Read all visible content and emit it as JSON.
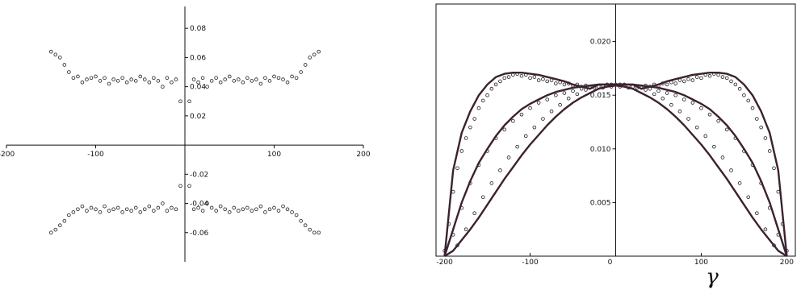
{
  "chart_data": [
    {
      "type": "scatter",
      "title": "",
      "xlabel": "",
      "ylabel": "",
      "xlim": [
        -200,
        200
      ],
      "ylim": [
        -0.08,
        0.095
      ],
      "grid": false,
      "legend": "none",
      "axes_style": "crossing at origin",
      "x_ticks": [
        -200,
        -100,
        100,
        200
      ],
      "x_tick_labels": [
        "-200",
        "-100",
        "100",
        "200"
      ],
      "y_ticks": [
        -0.06,
        -0.04,
        -0.02,
        0.02,
        0.04,
        0.06,
        0.08
      ],
      "y_tick_labels": [
        "-0.06",
        "-0.04",
        "-0.02",
        "0.02",
        "0.04",
        "0.06",
        "0.08"
      ],
      "series": [
        {
          "marker": "open-circle",
          "x": [
            -150,
            -145,
            -140,
            -135,
            -130,
            -125,
            -120,
            -115,
            -110,
            -105,
            -100,
            -95,
            -90,
            -85,
            -80,
            -75,
            -70,
            -65,
            -60,
            -55,
            -50,
            -45,
            -40,
            -35,
            -30,
            -25,
            -20,
            -15,
            -10,
            -5,
            5,
            10,
            15,
            20,
            25,
            30,
            35,
            40,
            45,
            50,
            55,
            60,
            65,
            70,
            75,
            80,
            85,
            90,
            95,
            100,
            105,
            110,
            115,
            120,
            125,
            130,
            135,
            140,
            145,
            150,
            -150,
            -145,
            -140,
            -135,
            -130,
            -125,
            -120,
            -115,
            -110,
            -105,
            -100,
            -95,
            -90,
            -85,
            -80,
            -75,
            -70,
            -65,
            -60,
            -55,
            -50,
            -45,
            -40,
            -35,
            -30,
            -25,
            -20,
            -15,
            -10,
            -5,
            5,
            10,
            15,
            20,
            25,
            30,
            35,
            40,
            45,
            50,
            55,
            60,
            65,
            70,
            75,
            80,
            85,
            90,
            95,
            100,
            105,
            110,
            115,
            120,
            125,
            130,
            135,
            140,
            145,
            150
          ],
          "y": [
            0.064,
            0.062,
            0.06,
            0.055,
            0.05,
            0.046,
            0.047,
            0.043,
            0.045,
            0.046,
            0.047,
            0.044,
            0.046,
            0.042,
            0.045,
            0.044,
            0.046,
            0.043,
            0.045,
            0.044,
            0.047,
            0.045,
            0.043,
            0.046,
            0.044,
            0.04,
            0.046,
            0.043,
            0.045,
            0.03,
            0.03,
            0.045,
            0.043,
            0.046,
            0.04,
            0.044,
            0.046,
            0.043,
            0.045,
            0.047,
            0.044,
            0.045,
            0.043,
            0.046,
            0.044,
            0.045,
            0.042,
            0.046,
            0.044,
            0.047,
            0.046,
            0.045,
            0.043,
            0.047,
            0.046,
            0.05,
            0.055,
            0.06,
            0.062,
            0.064,
            -0.06,
            -0.058,
            -0.055,
            -0.052,
            -0.048,
            -0.046,
            -0.044,
            -0.042,
            -0.045,
            -0.043,
            -0.044,
            -0.046,
            -0.042,
            -0.045,
            -0.044,
            -0.043,
            -0.046,
            -0.044,
            -0.045,
            -0.043,
            -0.046,
            -0.044,
            -0.042,
            -0.045,
            -0.043,
            -0.04,
            -0.045,
            -0.043,
            -0.044,
            -0.028,
            -0.028,
            -0.044,
            -0.043,
            -0.045,
            -0.04,
            -0.043,
            -0.045,
            -0.042,
            -0.044,
            -0.046,
            -0.043,
            -0.045,
            -0.044,
            -0.043,
            -0.045,
            -0.044,
            -0.042,
            -0.046,
            -0.044,
            -0.043,
            -0.045,
            -0.042,
            -0.044,
            -0.046,
            -0.048,
            -0.052,
            -0.055,
            -0.058,
            -0.06,
            -0.06
          ]
        }
      ]
    },
    {
      "type": "scatter",
      "title": "",
      "xlabel": "γ",
      "ylabel": "",
      "xlim": [
        -210,
        210
      ],
      "ylim": [
        0,
        0.0235
      ],
      "grid": false,
      "legend": "none",
      "axes_style": "boxed with vertical axis at x = 0",
      "x_ticks": [
        -200,
        -100,
        0,
        100,
        200
      ],
      "x_tick_labels": [
        "-200",
        "-100",
        "0",
        "100",
        "200"
      ],
      "y_ticks": [
        0.005,
        0.01,
        0.015,
        0.02
      ],
      "y_tick_labels": [
        "0.005",
        "0.010",
        "0.015",
        "0.020"
      ],
      "series": [
        {
          "marker": "open-circle",
          "x": [
            -200,
            -195,
            -190,
            -185,
            -180,
            -175,
            -170,
            -165,
            -160,
            -155,
            -150,
            -145,
            -140,
            -135,
            -130,
            -125,
            -120,
            -115,
            -110,
            -105,
            -100,
            -95,
            -90,
            -85,
            -80,
            -75,
            -70,
            -65,
            -60,
            -55,
            -50,
            -45,
            -40,
            -35,
            -30,
            -25,
            -20,
            -15,
            -10,
            -5,
            0,
            5,
            10,
            15,
            20,
            25,
            30,
            35,
            40,
            45,
            50,
            55,
            60,
            65,
            70,
            75,
            80,
            85,
            90,
            95,
            100,
            105,
            110,
            115,
            120,
            125,
            130,
            135,
            140,
            145,
            150,
            155,
            160,
            165,
            170,
            175,
            180,
            185,
            190,
            195,
            200,
            -190,
            -180,
            -170,
            -160,
            -150,
            -140,
            -130,
            -120,
            -110,
            -100,
            -90,
            -80,
            -70,
            -60,
            -50,
            -40,
            -30,
            -20,
            -10,
            10,
            20,
            30,
            40,
            50,
            60,
            70,
            80,
            90,
            100,
            110,
            120,
            130,
            140,
            150,
            160,
            170,
            180,
            190,
            -185,
            -175,
            -165,
            -155,
            -145,
            -135,
            -125,
            -115,
            -105,
            -95,
            -85,
            -75,
            -65,
            -55,
            -45,
            -35,
            -25,
            -15,
            -5,
            5,
            15,
            25,
            35,
            45,
            55,
            65,
            75,
            85,
            95,
            105,
            115,
            125,
            135,
            145,
            155,
            165,
            175,
            185
          ],
          "y": [
            0.0005,
            0.003,
            0.006,
            0.0082,
            0.0098,
            0.011,
            0.012,
            0.0128,
            0.0138,
            0.0145,
            0.015,
            0.0156,
            0.016,
            0.0163,
            0.0166,
            0.0167,
            0.0169,
            0.017,
            0.0168,
            0.0169,
            0.0166,
            0.0167,
            0.0164,
            0.0165,
            0.0163,
            0.0164,
            0.0161,
            0.0162,
            0.016,
            0.0161,
            0.0159,
            0.016,
            0.0158,
            0.0159,
            0.0157,
            0.0158,
            0.0159,
            0.0157,
            0.016,
            0.0158,
            0.016,
            0.0158,
            0.016,
            0.0157,
            0.0159,
            0.0158,
            0.0157,
            0.0159,
            0.0158,
            0.016,
            0.0159,
            0.0161,
            0.016,
            0.0162,
            0.0161,
            0.0164,
            0.0163,
            0.0165,
            0.0164,
            0.0167,
            0.0166,
            0.0169,
            0.0168,
            0.017,
            0.0169,
            0.0167,
            0.0166,
            0.0163,
            0.016,
            0.0156,
            0.015,
            0.0145,
            0.0138,
            0.0128,
            0.012,
            0.011,
            0.0098,
            0.0082,
            0.006,
            0.003,
            0.0005,
            0.002,
            0.0045,
            0.0068,
            0.0085,
            0.0098,
            0.011,
            0.0118,
            0.0126,
            0.0132,
            0.0138,
            0.0143,
            0.0146,
            0.015,
            0.0152,
            0.0154,
            0.0156,
            0.0157,
            0.0158,
            0.0159,
            0.0159,
            0.0158,
            0.0157,
            0.0156,
            0.0154,
            0.0152,
            0.015,
            0.0146,
            0.0143,
            0.0138,
            0.0132,
            0.0126,
            0.0118,
            0.011,
            0.0098,
            0.0085,
            0.0068,
            0.0045,
            0.002,
            0.001,
            0.0025,
            0.004,
            0.0055,
            0.0068,
            0.008,
            0.0092,
            0.0102,
            0.0112,
            0.012,
            0.0128,
            0.0135,
            0.0141,
            0.0147,
            0.0151,
            0.0155,
            0.0157,
            0.0159,
            0.016,
            0.016,
            0.0159,
            0.0157,
            0.0155,
            0.0151,
            0.0147,
            0.0141,
            0.0135,
            0.0128,
            0.012,
            0.0112,
            0.0102,
            0.0092,
            0.008,
            0.0068,
            0.0055,
            0.004,
            0.0025,
            0.001
          ]
        },
        {
          "marker": "line",
          "x": [
            -200,
            -195,
            -190,
            -180,
            -170,
            -160,
            -150,
            -140,
            -130,
            -120,
            -110,
            -100,
            -90,
            -80,
            -70,
            -60,
            -50,
            -40,
            -30,
            -20,
            -10,
            0,
            10,
            20,
            30,
            40,
            50,
            60,
            70,
            80,
            90,
            100,
            110,
            120,
            130,
            140,
            150,
            160,
            170,
            180,
            190,
            195,
            200
          ],
          "y": [
            0.0,
            0.004,
            0.008,
            0.0115,
            0.0135,
            0.015,
            0.016,
            0.0167,
            0.017,
            0.0171,
            0.0171,
            0.017,
            0.0169,
            0.0167,
            0.0165,
            0.0163,
            0.016,
            0.0158,
            0.0156,
            0.016,
            0.016,
            0.016,
            0.016,
            0.016,
            0.0156,
            0.0158,
            0.016,
            0.0163,
            0.0165,
            0.0167,
            0.0169,
            0.017,
            0.0171,
            0.0171,
            0.017,
            0.0167,
            0.016,
            0.015,
            0.0135,
            0.0115,
            0.008,
            0.004,
            0.0
          ]
        },
        {
          "marker": "line",
          "x": [
            -200,
            -190,
            -180,
            -170,
            -160,
            -150,
            -140,
            -130,
            -120,
            -110,
            -100,
            -90,
            -80,
            -70,
            -60,
            -50,
            -40,
            -30,
            -20,
            -10,
            0,
            10,
            20,
            30,
            40,
            50,
            60,
            70,
            80,
            90,
            100,
            110,
            120,
            130,
            140,
            150,
            160,
            170,
            180,
            190,
            200
          ],
          "y": [
            0.0,
            0.0025,
            0.005,
            0.007,
            0.0087,
            0.01,
            0.0112,
            0.0122,
            0.013,
            0.0137,
            0.0142,
            0.0146,
            0.015,
            0.0153,
            0.0155,
            0.0157,
            0.0158,
            0.0159,
            0.016,
            0.016,
            0.016,
            0.016,
            0.016,
            0.0159,
            0.0158,
            0.0157,
            0.0155,
            0.0153,
            0.015,
            0.0146,
            0.0142,
            0.0137,
            0.013,
            0.0122,
            0.0112,
            0.01,
            0.0087,
            0.007,
            0.005,
            0.0025,
            0.0
          ]
        },
        {
          "marker": "line",
          "x": [
            -200,
            -190,
            -180,
            -170,
            -160,
            -150,
            -140,
            -130,
            -120,
            -110,
            -100,
            -90,
            -80,
            -70,
            -60,
            -50,
            -40,
            -30,
            -20,
            -10,
            0,
            10,
            20,
            30,
            40,
            50,
            60,
            70,
            80,
            90,
            100,
            110,
            120,
            130,
            140,
            150,
            160,
            170,
            180,
            190,
            200
          ],
          "y": [
            0.0,
            0.0005,
            0.0015,
            0.0025,
            0.0036,
            0.0048,
            0.006,
            0.0072,
            0.0083,
            0.0094,
            0.0104,
            0.0113,
            0.0122,
            0.013,
            0.0137,
            0.0143,
            0.0148,
            0.0152,
            0.0156,
            0.0158,
            0.0159,
            0.0158,
            0.0156,
            0.0152,
            0.0148,
            0.0143,
            0.0137,
            0.013,
            0.0122,
            0.0113,
            0.0104,
            0.0094,
            0.0083,
            0.0072,
            0.006,
            0.0048,
            0.0036,
            0.0025,
            0.0015,
            0.0005,
            0.0
          ]
        }
      ]
    }
  ]
}
